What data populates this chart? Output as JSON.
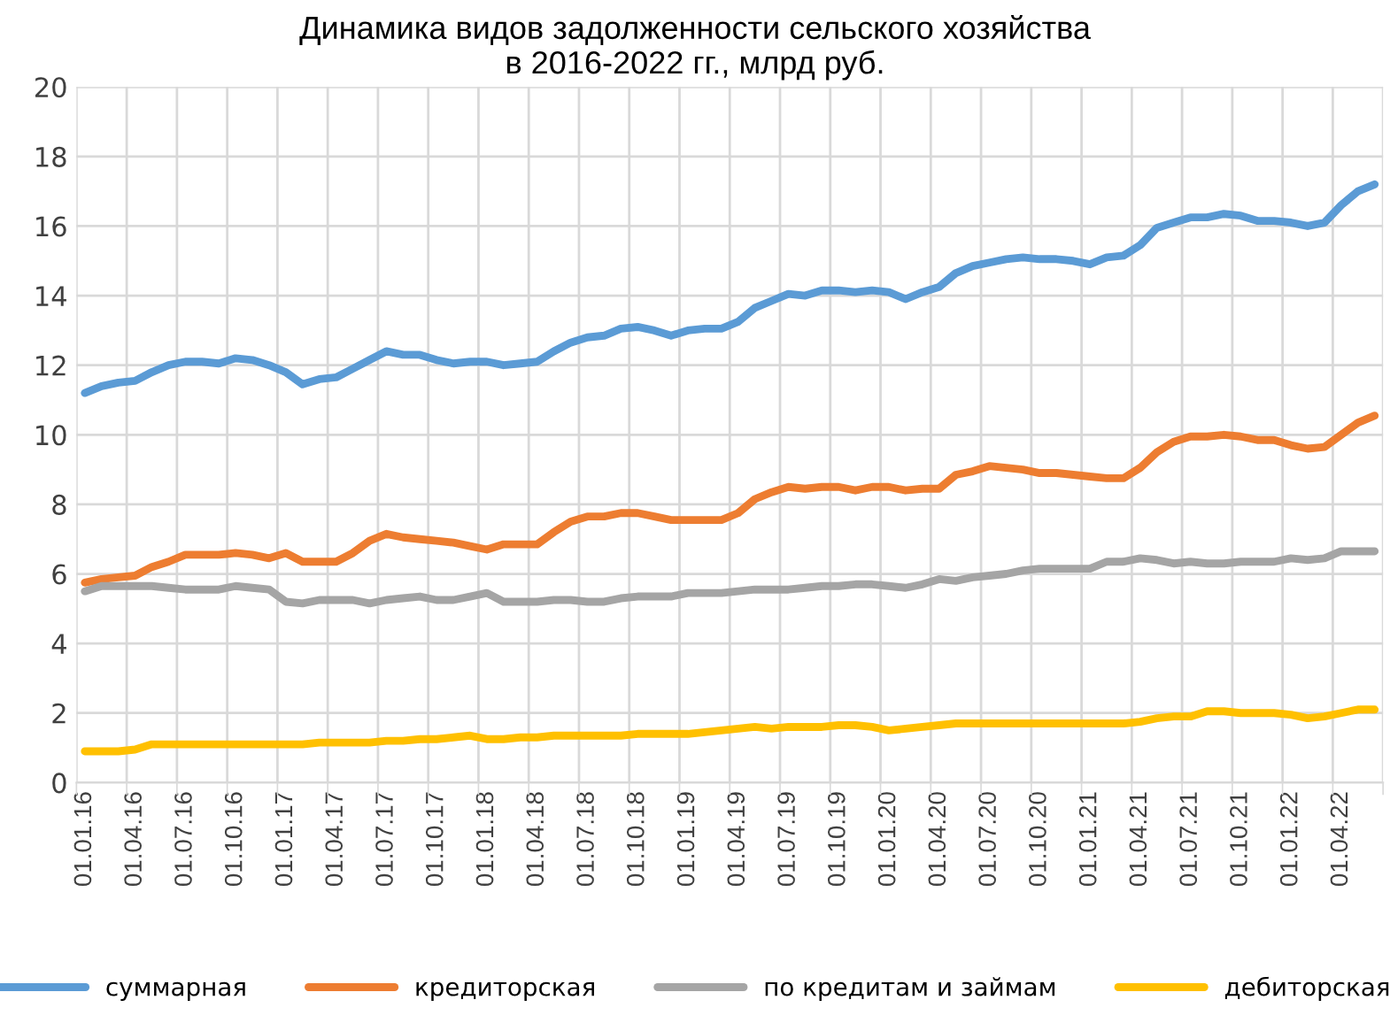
{
  "chart_data": {
    "type": "line",
    "title": "Динамика видов задолженности сельского хозяйства\nв 2016-2022 гг., млрд руб.",
    "categories": [
      "01.01.16",
      null,
      null,
      "01.04.16",
      null,
      null,
      "01.07.16",
      null,
      null,
      "01.10.16",
      null,
      null,
      "01.01.17",
      null,
      null,
      "01.04.17",
      null,
      null,
      "01.07.17",
      null,
      null,
      "01.10.17",
      null,
      null,
      "01.01.18",
      null,
      null,
      "01.04.18",
      null,
      null,
      "01.07.18",
      null,
      null,
      "01.10.18",
      null,
      null,
      "01.01.19",
      null,
      null,
      "01.04.19",
      null,
      null,
      "01.07.19",
      null,
      null,
      "01.10.19",
      null,
      null,
      "01.01.20",
      null,
      null,
      "01.04.20",
      null,
      null,
      "01.07.20",
      null,
      null,
      "01.10.20",
      null,
      null,
      "01.01.21",
      null,
      null,
      "01.04.21",
      null,
      null,
      "01.07.21",
      null,
      null,
      "01.10.21",
      null,
      null,
      "01.01.22",
      null,
      null,
      "01.04.22",
      null,
      null
    ],
    "series": [
      {
        "name": "суммарная",
        "color": "#5b9bd5",
        "values": [
          11.2,
          11.4,
          11.5,
          11.55,
          11.8,
          12.0,
          12.1,
          12.1,
          12.05,
          12.2,
          12.15,
          12.0,
          11.8,
          11.45,
          11.6,
          11.65,
          11.9,
          12.15,
          12.4,
          12.3,
          12.3,
          12.15,
          12.05,
          12.1,
          12.1,
          12.0,
          12.05,
          12.1,
          12.4,
          12.65,
          12.8,
          12.85,
          13.05,
          13.1,
          13.0,
          12.85,
          13.0,
          13.05,
          13.05,
          13.25,
          13.65,
          13.85,
          14.05,
          14.0,
          14.15,
          14.15,
          14.1,
          14.15,
          14.1,
          13.9,
          14.1,
          14.25,
          14.65,
          14.85,
          14.95,
          15.05,
          15.1,
          15.05,
          15.05,
          15.0,
          14.9,
          15.1,
          15.15,
          15.45,
          15.95,
          16.1,
          16.25,
          16.25,
          16.35,
          16.3,
          16.15,
          16.15,
          16.1,
          16.0,
          16.1,
          16.6,
          17.0,
          17.2
        ]
      },
      {
        "name": "кредиторская",
        "color": "#ed7d31",
        "values": [
          5.75,
          5.85,
          5.9,
          5.95,
          6.2,
          6.35,
          6.55,
          6.55,
          6.55,
          6.6,
          6.55,
          6.45,
          6.6,
          6.35,
          6.35,
          6.35,
          6.6,
          6.95,
          7.15,
          7.05,
          7.0,
          6.95,
          6.9,
          6.8,
          6.7,
          6.85,
          6.85,
          6.85,
          7.2,
          7.5,
          7.65,
          7.65,
          7.75,
          7.75,
          7.65,
          7.55,
          7.55,
          7.55,
          7.55,
          7.75,
          8.15,
          8.35,
          8.5,
          8.45,
          8.5,
          8.5,
          8.4,
          8.5,
          8.5,
          8.4,
          8.45,
          8.45,
          8.85,
          8.95,
          9.1,
          9.05,
          9.0,
          8.9,
          8.9,
          8.85,
          8.8,
          8.75,
          8.75,
          9.05,
          9.5,
          9.8,
          9.95,
          9.95,
          10.0,
          9.95,
          9.85,
          9.85,
          9.7,
          9.6,
          9.65,
          10.0,
          10.35,
          10.55
        ]
      },
      {
        "name": "по кредитам и займам",
        "color": "#a5a5a5",
        "values": [
          5.5,
          5.65,
          5.65,
          5.65,
          5.65,
          5.6,
          5.55,
          5.55,
          5.55,
          5.65,
          5.6,
          5.55,
          5.2,
          5.15,
          5.25,
          5.25,
          5.25,
          5.15,
          5.25,
          5.3,
          5.35,
          5.25,
          5.25,
          5.35,
          5.45,
          5.2,
          5.2,
          5.2,
          5.25,
          5.25,
          5.2,
          5.2,
          5.3,
          5.35,
          5.35,
          5.35,
          5.45,
          5.45,
          5.45,
          5.5,
          5.55,
          5.55,
          5.55,
          5.6,
          5.65,
          5.65,
          5.7,
          5.7,
          5.65,
          5.6,
          5.7,
          5.85,
          5.8,
          5.9,
          5.95,
          6.0,
          6.1,
          6.15,
          6.15,
          6.15,
          6.15,
          6.35,
          6.35,
          6.45,
          6.4,
          6.3,
          6.35,
          6.3,
          6.3,
          6.35,
          6.35,
          6.35,
          6.45,
          6.4,
          6.45,
          6.65,
          6.65,
          6.65
        ]
      },
      {
        "name": "дебиторская",
        "color": "#ffc000",
        "values": [
          0.9,
          0.9,
          0.9,
          0.95,
          1.1,
          1.1,
          1.1,
          1.1,
          1.1,
          1.1,
          1.1,
          1.1,
          1.1,
          1.1,
          1.15,
          1.15,
          1.15,
          1.15,
          1.2,
          1.2,
          1.25,
          1.25,
          1.3,
          1.35,
          1.25,
          1.25,
          1.3,
          1.3,
          1.35,
          1.35,
          1.35,
          1.35,
          1.35,
          1.4,
          1.4,
          1.4,
          1.4,
          1.45,
          1.5,
          1.55,
          1.6,
          1.55,
          1.6,
          1.6,
          1.6,
          1.65,
          1.65,
          1.6,
          1.5,
          1.55,
          1.6,
          1.65,
          1.7,
          1.7,
          1.7,
          1.7,
          1.7,
          1.7,
          1.7,
          1.7,
          1.7,
          1.7,
          1.7,
          1.75,
          1.85,
          1.9,
          1.9,
          2.05,
          2.05,
          2.0,
          2.0,
          2.0,
          1.95,
          1.85,
          1.9,
          2.0,
          2.1,
          2.1
        ]
      }
    ],
    "ylim": [
      0,
      20
    ],
    "yticks": [
      0,
      2,
      4,
      6,
      8,
      10,
      12,
      14,
      16,
      18,
      20
    ],
    "grid": true,
    "legend": "bottom",
    "marker": "none",
    "line_style": "solid"
  }
}
